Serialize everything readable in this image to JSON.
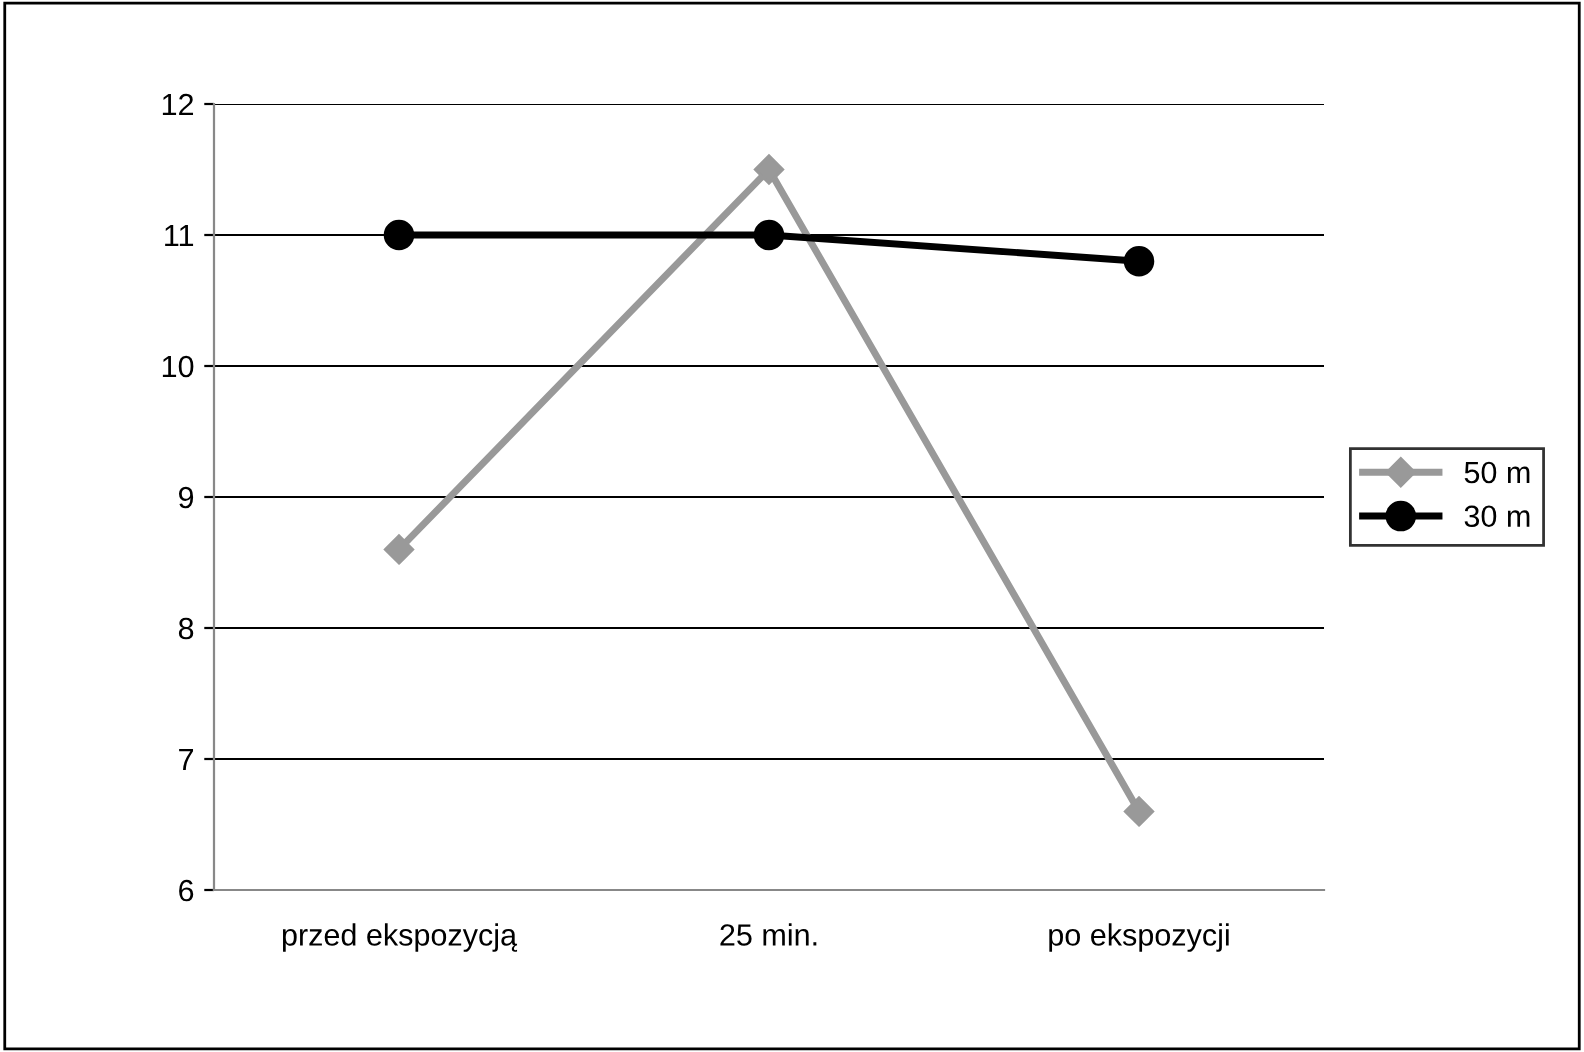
{
  "chart_data": {
    "type": "line",
    "categories": [
      "przed ekspozycją",
      "25 min.",
      "po ekspozycji"
    ],
    "series": [
      {
        "name": "50 m",
        "color": "#999999",
        "values": [
          8.6,
          11.5,
          6.6
        ],
        "marker": "diamond"
      },
      {
        "name": "30 m",
        "color": "#000000",
        "values": [
          11.0,
          11.0,
          10.8
        ],
        "marker": "circle"
      }
    ],
    "ylim": [
      6,
      12
    ],
    "yticks": [
      6,
      7,
      8,
      9,
      10,
      11,
      12
    ],
    "grid": "y",
    "legend": "right",
    "line_style": "solid"
  }
}
